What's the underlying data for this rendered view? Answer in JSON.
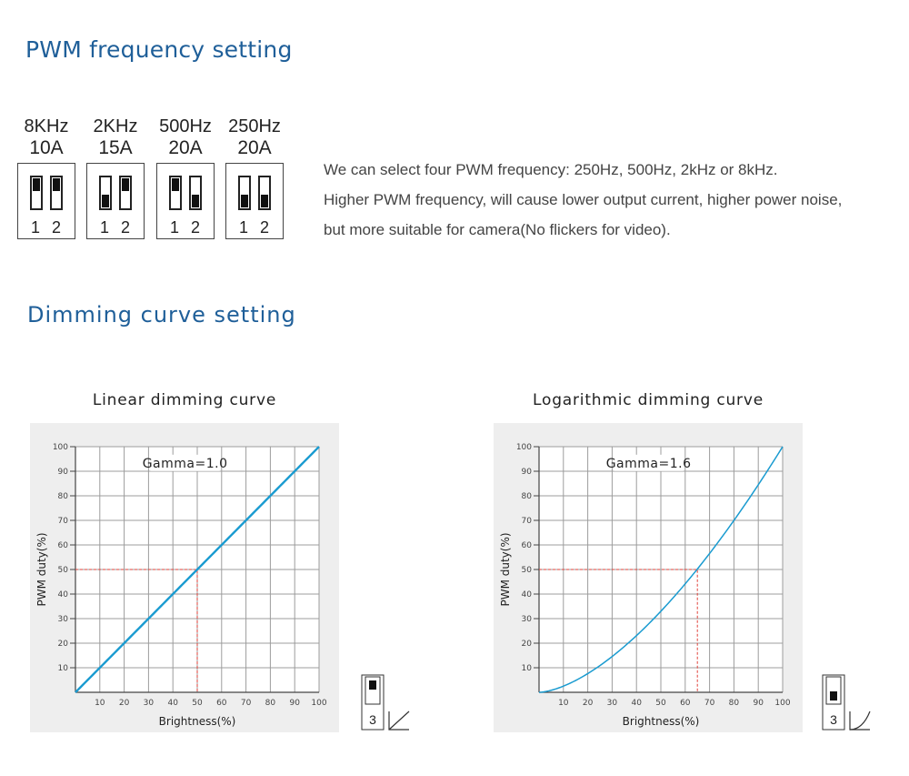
{
  "pwm": {
    "title": "PWM frequency setting",
    "switches": [
      {
        "freq": "8KHz",
        "current": "10A",
        "sw1": "up",
        "sw2": "up"
      },
      {
        "freq": "2KHz",
        "current": "15A",
        "sw1": "down",
        "sw2": "up"
      },
      {
        "freq": "500Hz",
        "current": "20A",
        "sw1": "up",
        "sw2": "down"
      },
      {
        "freq": "250Hz",
        "current": "20A",
        "sw1": "down",
        "sw2": "down"
      }
    ],
    "switch_numbers": [
      "1",
      "2"
    ],
    "description": [
      "We can select four PWM frequency: 250Hz, 500Hz, 2kHz or 8kHz.",
      "Higher PWM frequency, will cause lower output current, higher power noise,",
      "but more suitable for camera(No flickers for video)."
    ]
  },
  "dimming": {
    "title": "Dimming curve setting",
    "switch_label": "3"
  },
  "chart_data": [
    {
      "type": "line",
      "title": "Linear dimming curve",
      "annotation": "Gamma=1.0",
      "xlabel": "Brightness(%)",
      "ylabel": "PWM duty(%)",
      "xlim": [
        0,
        100
      ],
      "ylim": [
        0,
        100
      ],
      "x_ticks": [
        "10",
        "20",
        "30",
        "40",
        "50",
        "60",
        "70",
        "80",
        "90",
        "100"
      ],
      "y_ticks": [
        "10",
        "20",
        "30",
        "40",
        "50",
        "60",
        "70",
        "80",
        "90",
        "100"
      ],
      "grid": true,
      "gamma": 1.0,
      "series": [
        {
          "x": [
            0,
            10,
            20,
            30,
            40,
            50,
            60,
            70,
            80,
            90,
            100
          ],
          "y": [
            0,
            10,
            20,
            30,
            40,
            50,
            60,
            70,
            80,
            90,
            100
          ]
        }
      ],
      "reference": {
        "x": 50,
        "y": 50
      },
      "line_color": "#1a9bd0",
      "ref_color": "#e0413a",
      "switch_state": "up"
    },
    {
      "type": "line",
      "title": "Logarithmic dimming curve",
      "annotation": "Gamma=1.6",
      "xlabel": "Brightness(%)",
      "ylabel": "PWM duty(%)",
      "xlim": [
        0,
        100
      ],
      "ylim": [
        0,
        100
      ],
      "x_ticks": [
        "10",
        "20",
        "30",
        "40",
        "50",
        "60",
        "70",
        "80",
        "90",
        "100"
      ],
      "y_ticks": [
        "10",
        "20",
        "30",
        "40",
        "50",
        "60",
        "70",
        "80",
        "90",
        "100"
      ],
      "grid": true,
      "gamma": 1.6,
      "series": [
        {
          "x": [
            0,
            10,
            20,
            30,
            40,
            50,
            60,
            70,
            80,
            90,
            100
          ],
          "y": [
            0,
            2.5,
            7.6,
            14.6,
            23.1,
            33,
            44.1,
            56.5,
            70,
            84.5,
            100
          ]
        }
      ],
      "reference": {
        "x": 65,
        "y": 50
      },
      "line_color": "#1a9bd0",
      "ref_color": "#e0413a",
      "switch_state": "down"
    }
  ]
}
